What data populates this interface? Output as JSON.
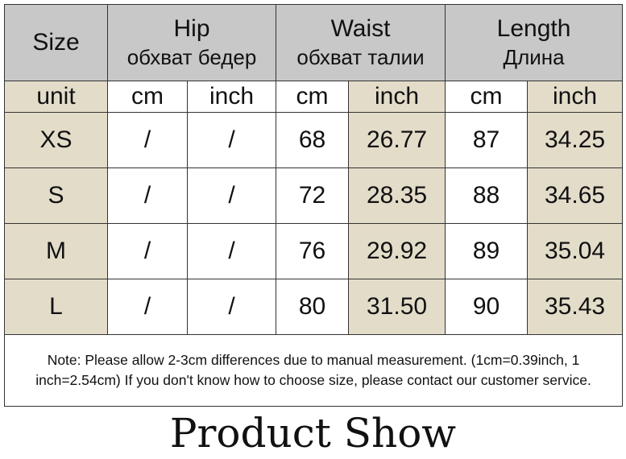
{
  "header": {
    "size": "Size",
    "hip_en": "Hip",
    "hip_ru": "обхват бедер",
    "waist_en": "Waist",
    "waist_ru": "обхват талии",
    "length_en": "Length",
    "length_ru": "Длина"
  },
  "units": [
    "unit",
    "cm",
    "inch",
    "cm",
    "inch",
    "cm",
    "inch"
  ],
  "rows": [
    {
      "size": "XS",
      "hip_cm": "/",
      "hip_inch": "/",
      "waist_cm": "68",
      "waist_inch": "26.77",
      "length_cm": "87",
      "length_inch": "34.25"
    },
    {
      "size": "S",
      "hip_cm": "/",
      "hip_inch": "/",
      "waist_cm": "72",
      "waist_inch": "28.35",
      "length_cm": "88",
      "length_inch": "34.65"
    },
    {
      "size": "M",
      "hip_cm": "/",
      "hip_inch": "/",
      "waist_cm": "76",
      "waist_inch": "29.92",
      "length_cm": "89",
      "length_inch": "35.04"
    },
    {
      "size": "L",
      "hip_cm": "/",
      "hip_inch": "/",
      "waist_cm": "80",
      "waist_inch": "31.50",
      "length_cm": "90",
      "length_inch": "35.43"
    }
  ],
  "note": "Note: Please allow 2-3cm differences due to manual measurement. (1cm=0.39inch, 1 inch=2.54cm)  If you don't know how to choose size, please contact our customer service.",
  "footer_title": "Product Show",
  "colors": {
    "header_gray": "#c8c8c8",
    "beige": "#e3dcc9",
    "border": "#333333"
  }
}
